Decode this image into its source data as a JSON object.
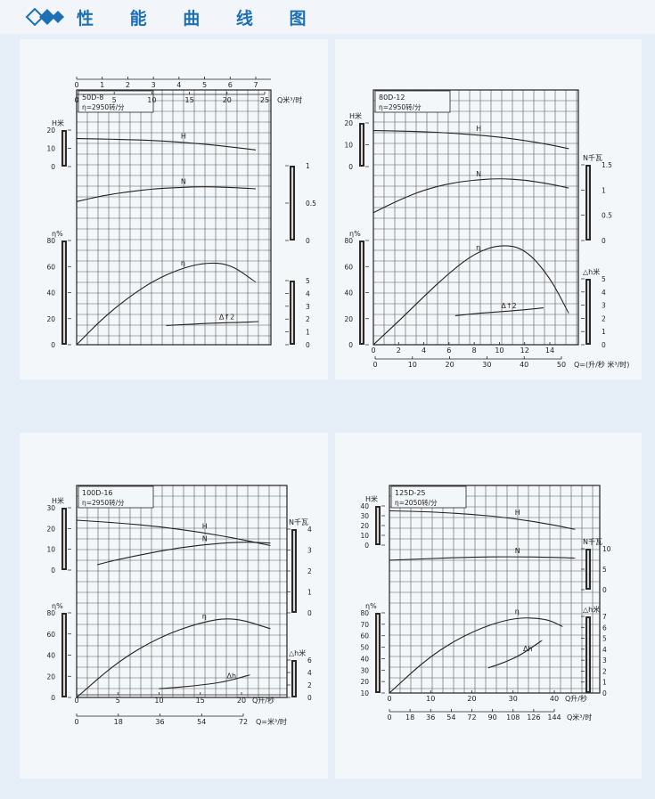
{
  "page_title": "性 能 曲 线 图",
  "theme": {
    "ink": "#222222",
    "grid": "#555555",
    "title_blue": "#1e6fb4",
    "panel_bg": "#f4f7fa",
    "page_bg": "#e6eef7"
  },
  "chart_data": [
    {
      "type": "line",
      "model": "50D-8",
      "speed": "η=2950转/分",
      "q_primary_ticks": [
        "0",
        "1",
        "2",
        "3",
        "4",
        "5",
        "6",
        "7"
      ],
      "q_primary_values": [
        0,
        1,
        2,
        3,
        4,
        5,
        6,
        7
      ],
      "q_secondary_ticks": [
        "0",
        "5",
        "10",
        "15",
        "20",
        "25"
      ],
      "q_secondary_values": [
        0,
        5,
        10,
        15,
        20,
        25
      ],
      "q_unit": "Q米³/时",
      "h_axis": {
        "label": "H米",
        "ticks": [
          "20",
          "10",
          "0"
        ],
        "range": [
          0,
          20
        ]
      },
      "eta_axis": {
        "label": "η%",
        "ticks": [
          "80",
          "60",
          "40",
          "20",
          "0"
        ],
        "range": [
          0,
          80
        ]
      },
      "n_axis": {
        "label": "",
        "ticks": [
          "1",
          "0.5",
          "0"
        ],
        "range": [
          0,
          1
        ]
      },
      "dh_axis": {
        "label": "",
        "ticks": [
          "5",
          "4",
          "3",
          "2",
          "1",
          "0"
        ],
        "range": [
          0,
          5
        ]
      },
      "series": [
        {
          "name": "H",
          "x": [
            0,
            1,
            2,
            3,
            4,
            5,
            6,
            7
          ],
          "y": [
            15.3,
            15.1,
            14.8,
            14.3,
            13.4,
            12.3,
            10.8,
            9.1
          ]
        },
        {
          "name": "N",
          "x": [
            0,
            1,
            2,
            3,
            4,
            5,
            6,
            7
          ],
          "y": [
            0.52,
            0.6,
            0.65,
            0.69,
            0.71,
            0.72,
            0.71,
            0.69
          ]
        },
        {
          "name": "η",
          "x": [
            0,
            1,
            2,
            3,
            4,
            5,
            6,
            7
          ],
          "y": [
            0,
            20,
            36,
            49,
            58,
            63,
            62,
            48
          ]
        },
        {
          "name": "Δ↑2",
          "x": [
            3.5,
            4.5,
            5.5,
            6.5,
            7.1
          ],
          "y": [
            1.5,
            1.6,
            1.7,
            1.75,
            1.8
          ]
        }
      ]
    },
    {
      "type": "line",
      "model": "80D-12",
      "speed": "η=2950转/分",
      "q_primary_ticks": [
        "0",
        "2",
        "4",
        "6",
        "8",
        "10",
        "12",
        "14"
      ],
      "q_primary_values": [
        0,
        2,
        4,
        6,
        8,
        10,
        12,
        14
      ],
      "q_secondary_ticks": [
        "0",
        "10",
        "20",
        "30",
        "40",
        "50"
      ],
      "q_secondary_values": [
        0,
        10,
        20,
        30,
        40,
        50
      ],
      "q_unit": "Q=(升/秒 米³/时)",
      "h_axis": {
        "label": "H米",
        "ticks": [
          "20",
          "10",
          "0"
        ],
        "range": [
          0,
          20
        ]
      },
      "eta_axis": {
        "label": "η%",
        "ticks": [
          "80",
          "60",
          "40",
          "20",
          "0"
        ],
        "range": [
          0,
          80
        ]
      },
      "n_axis": {
        "label": "N千瓦",
        "ticks": [
          "1.5",
          "1",
          "0.5",
          "0"
        ],
        "range": [
          0,
          1.5
        ]
      },
      "dh_axis": {
        "label": "△h米",
        "ticks": [
          "5",
          "4",
          "3",
          "2",
          "1",
          "0"
        ],
        "range": [
          0,
          5
        ]
      },
      "series": [
        {
          "name": "H",
          "x": [
            0,
            2,
            4,
            6,
            8,
            10,
            12,
            14,
            15.5
          ],
          "y": [
            16.5,
            16.3,
            16,
            15.4,
            14.6,
            13.5,
            12,
            10,
            8.2
          ]
        },
        {
          "name": "N",
          "x": [
            0,
            2,
            4,
            6,
            8,
            10,
            12,
            14,
            15.5
          ],
          "y": [
            0.55,
            0.8,
            1.0,
            1.13,
            1.2,
            1.23,
            1.2,
            1.12,
            1.04
          ]
        },
        {
          "name": "η",
          "x": [
            0,
            2,
            4,
            6,
            8,
            10,
            12,
            14,
            15.5
          ],
          "y": [
            0,
            18,
            37,
            55,
            70,
            77,
            74,
            52,
            24
          ]
        },
        {
          "name": "Δ↑2",
          "x": [
            6.5,
            8,
            10,
            12,
            13.5
          ],
          "y": [
            2.2,
            2.35,
            2.5,
            2.65,
            2.8
          ]
        }
      ]
    },
    {
      "type": "line",
      "model": "100D-16",
      "speed": "η=2950转/分",
      "q_primary_ticks": [
        "0",
        "5",
        "10",
        "15",
        "20"
      ],
      "q_primary_values": [
        0,
        5,
        10,
        15,
        20
      ],
      "q_secondary_ticks": [
        "0",
        "18",
        "36",
        "54",
        "72"
      ],
      "q_secondary_values": [
        0,
        18,
        36,
        54,
        72
      ],
      "q_unit_primary": "Q升/秒",
      "q_unit": "Q=米³/时",
      "h_axis": {
        "label": "H米",
        "ticks": [
          "30",
          "20",
          "10",
          "0"
        ],
        "range": [
          0,
          30
        ]
      },
      "eta_axis": {
        "label": "η%",
        "ticks": [
          "80",
          "60",
          "40",
          "20",
          "0"
        ],
        "range": [
          0,
          80
        ]
      },
      "n_axis": {
        "label": "N千瓦",
        "ticks": [
          "4",
          "3",
          "2",
          "1",
          "0"
        ],
        "range": [
          0,
          4
        ]
      },
      "dh_axis": {
        "label": "△h米",
        "ticks": [
          "6",
          "4",
          "2",
          "0"
        ],
        "range": [
          0,
          6
        ]
      },
      "series": [
        {
          "name": "H",
          "x": [
            0,
            5,
            10,
            15,
            20,
            23.5
          ],
          "y": [
            24,
            22.7,
            20.9,
            18.3,
            14.7,
            11.8
          ]
        },
        {
          "name": "N",
          "x": [
            2.5,
            5,
            10,
            15,
            20,
            23.5
          ],
          "y": [
            2.3,
            2.55,
            2.95,
            3.25,
            3.4,
            3.33
          ]
        },
        {
          "name": "η",
          "x": [
            0,
            5,
            10,
            15,
            19,
            23.5
          ],
          "y": [
            0,
            34,
            57,
            71,
            76,
            65
          ]
        },
        {
          "name": "Δh",
          "x": [
            10,
            14,
            18,
            21
          ],
          "y": [
            1.4,
            1.8,
            2.5,
            3.6
          ]
        }
      ]
    },
    {
      "type": "line",
      "model": "125D-25",
      "speed": "η=2050转/分",
      "q_primary_ticks": [
        "0",
        "10",
        "20",
        "30",
        "40"
      ],
      "q_primary_values": [
        0,
        10,
        20,
        30,
        40
      ],
      "q_secondary_ticks": [
        "0",
        "18",
        "36",
        "54",
        "72",
        "90",
        "108",
        "126",
        "144"
      ],
      "q_secondary_values": [
        0,
        18,
        36,
        54,
        72,
        90,
        108,
        126,
        144
      ],
      "q_unit_primary": "Q升/秒",
      "q_unit": "Q米³/时",
      "h_axis": {
        "label": "H米",
        "ticks": [
          "40",
          "30",
          "20",
          "10",
          "0"
        ],
        "range": [
          0,
          40
        ]
      },
      "eta_axis": {
        "label": "η%",
        "ticks": [
          "80",
          "70",
          "60",
          "50",
          "40",
          "30",
          "20",
          "10"
        ],
        "range": [
          10,
          80
        ]
      },
      "n_axis": {
        "label": "N千瓦",
        "ticks": [
          "10",
          "5",
          "0"
        ],
        "range": [
          0,
          10
        ]
      },
      "dh_axis": {
        "label": "△h米",
        "ticks": [
          "7",
          "6",
          "5",
          "4",
          "3",
          "2",
          "1",
          "0"
        ],
        "range": [
          0,
          7
        ]
      },
      "series": [
        {
          "name": "H",
          "x": [
            0,
            10,
            20,
            30,
            40,
            45
          ],
          "y": [
            35,
            34,
            31.5,
            27.5,
            20.5,
            16
          ]
        },
        {
          "name": "N",
          "x": [
            0,
            10,
            20,
            30,
            40,
            45
          ],
          "y": [
            7.2,
            7.6,
            7.95,
            8.05,
            7.9,
            7.7
          ]
        },
        {
          "name": "η",
          "x": [
            0,
            10,
            20,
            30,
            38,
            42
          ],
          "y": [
            10,
            43,
            64,
            76,
            75,
            68
          ]
        },
        {
          "name": "Δh",
          "x": [
            24,
            28,
            32,
            37
          ],
          "y": [
            2.3,
            2.8,
            3.5,
            4.8
          ]
        }
      ]
    }
  ]
}
